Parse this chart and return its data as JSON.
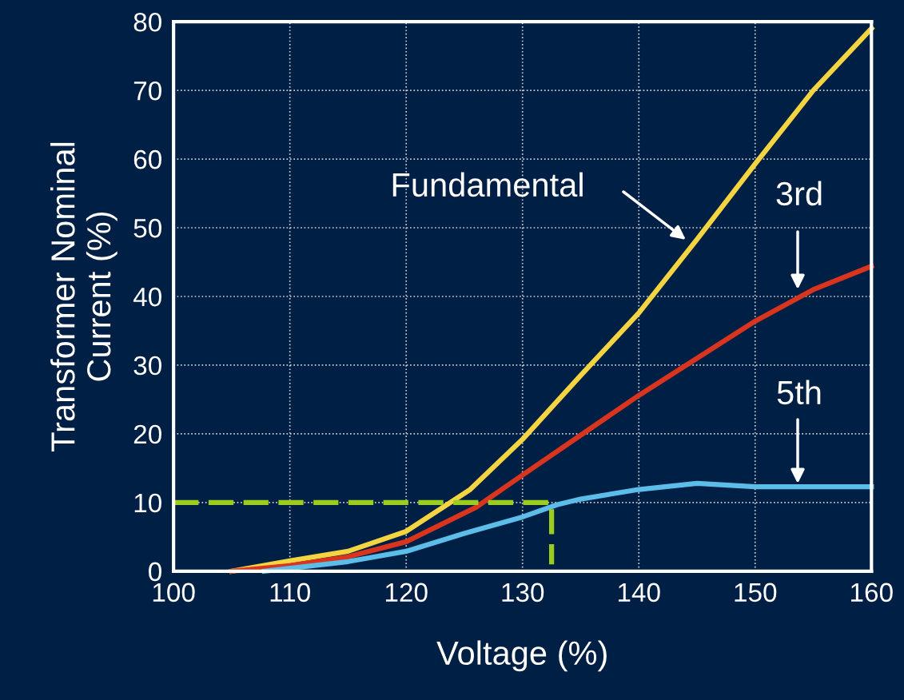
{
  "chart_data": {
    "type": "line",
    "xlabel": "Voltage (%)",
    "ylabel": "Transformer Nominal\nCurrent (%)",
    "xlim": [
      100,
      160
    ],
    "ylim": [
      0,
      80
    ],
    "xticks": [
      100,
      110,
      120,
      130,
      140,
      150,
      160
    ],
    "yticks": [
      0,
      10,
      20,
      30,
      40,
      50,
      60,
      70,
      80
    ],
    "grid": true,
    "marker": "none",
    "line_style": "solid",
    "series": [
      {
        "color": "#f5d442",
        "x": [
          105,
          110,
          115,
          120,
          125.5,
          130,
          135,
          140,
          145,
          150,
          155,
          160
        ],
        "values": [
          0,
          1.5,
          2.9,
          5.8,
          11.9,
          19.2,
          28.5,
          37.6,
          48.3,
          59.3,
          70,
          79
        ]
      },
      {
        "color": "#d9351e",
        "x": [
          105,
          110,
          115,
          120,
          126,
          130,
          135,
          140,
          145,
          150,
          155,
          160
        ],
        "values": [
          0,
          0.8,
          2.1,
          4.3,
          9.3,
          14,
          19.8,
          25.6,
          31,
          36.4,
          41,
          44.4
        ]
      },
      {
        "color": "#5bbde8",
        "x": [
          107.8,
          115,
          120,
          125,
          130,
          133,
          135,
          140,
          145,
          150,
          160
        ],
        "values": [
          0,
          1.4,
          2.9,
          5.5,
          7.9,
          9.7,
          10.5,
          11.9,
          12.8,
          12.3,
          12.3
        ]
      },
      {
        "color": "#9acd1e",
        "line_style": "dashed",
        "x": [
          100,
          132.5,
          132.5
        ],
        "values": [
          10,
          10,
          1
        ]
      }
    ],
    "annotations": [
      "Fundamental",
      "3rd",
      "5th"
    ]
  }
}
